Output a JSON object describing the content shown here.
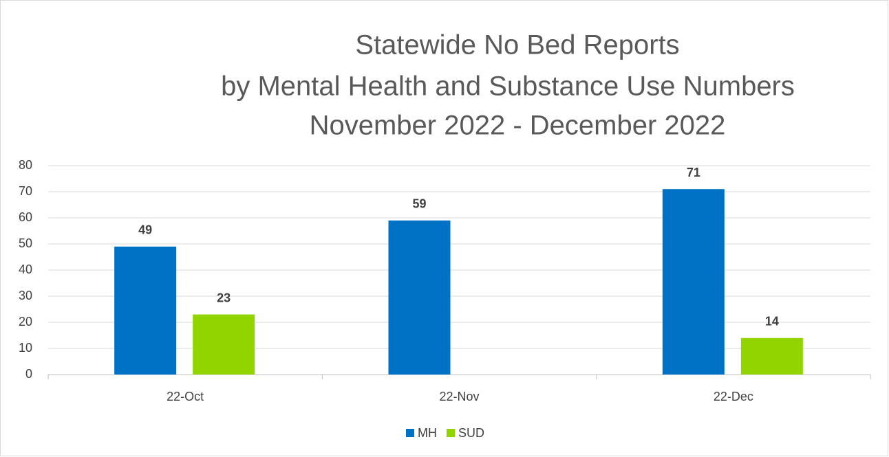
{
  "chart_data": {
    "type": "bar",
    "title": [
      "Statewide No Bed Reports",
      "by Mental Health and Substance Use Numbers",
      "November 2022 - December 2022"
    ],
    "categories": [
      "22-Oct",
      "22-Nov",
      "22-Dec"
    ],
    "series": [
      {
        "name": "MH",
        "color": "#0072c6",
        "values": [
          49,
          59,
          71
        ]
      },
      {
        "name": "SUD",
        "color": "#92d400",
        "values": [
          23,
          null,
          14
        ]
      }
    ],
    "ylim": [
      0,
      80
    ],
    "yticks": [
      0,
      10,
      20,
      30,
      40,
      50,
      60,
      70,
      80
    ],
    "grid": true,
    "legend": "bottom",
    "data_labels": true
  }
}
